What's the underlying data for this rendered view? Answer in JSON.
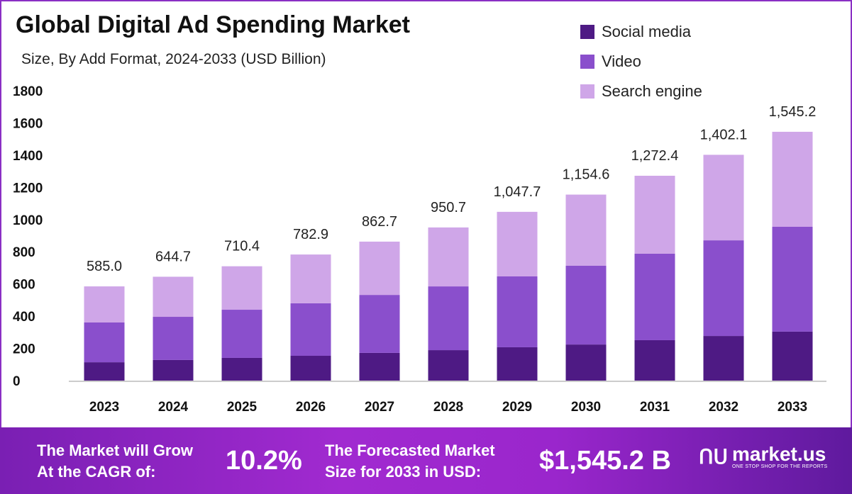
{
  "chart_data": {
    "type": "bar",
    "stacked": true,
    "title": "Global Digital Ad Spending Market",
    "subtitle": "Size, By Add Format, 2024-2033 (USD Billion)",
    "xlabel": "",
    "ylabel": "",
    "ylim": [
      0,
      1800
    ],
    "yticks": [
      "0",
      "200",
      "400",
      "600",
      "800",
      "1000",
      "1200",
      "1400",
      "1600",
      "1800"
    ],
    "grid": false,
    "legend_position": "top-right",
    "categories": [
      "2023",
      "2024",
      "2025",
      "2026",
      "2027",
      "2028",
      "2029",
      "2030",
      "2031",
      "2032",
      "2033"
    ],
    "series": [
      {
        "name": "Social media",
        "color": "#4e1a84",
        "values": [
          114,
          128,
          141,
          154,
          172,
          189,
          207,
          224,
          251,
          277,
          304
        ]
      },
      {
        "name": "Video",
        "color": "#8a4fcc",
        "values": [
          247,
          268,
          299,
          326,
          360,
          396,
          440,
          489,
          537,
          594,
          651
        ]
      },
      {
        "name": "Search engine",
        "color": "#cfa6e8",
        "values": [
          224,
          249,
          270,
          303,
          331,
          366,
          401,
          442,
          484,
          531,
          590
        ]
      }
    ],
    "totals": [
      "585.0",
      "644.7",
      "710.4",
      "782.9",
      "862.7",
      "950.7",
      "1,047.7",
      "1,154.6",
      "1,272.4",
      "1,402.1",
      "1,545.2"
    ]
  },
  "footer": {
    "cagr_label_1": "The Market will Grow",
    "cagr_label_2": "At the CAGR of:",
    "cagr_value": "10.2%",
    "forecast_label_1": "The Forecasted Market",
    "forecast_label_2": "Size for 2033 in USD:",
    "forecast_value": "$1,545.2 B",
    "logo_text": "market.us",
    "logo_tagline": "ONE STOP SHOP FOR THE REPORTS"
  }
}
